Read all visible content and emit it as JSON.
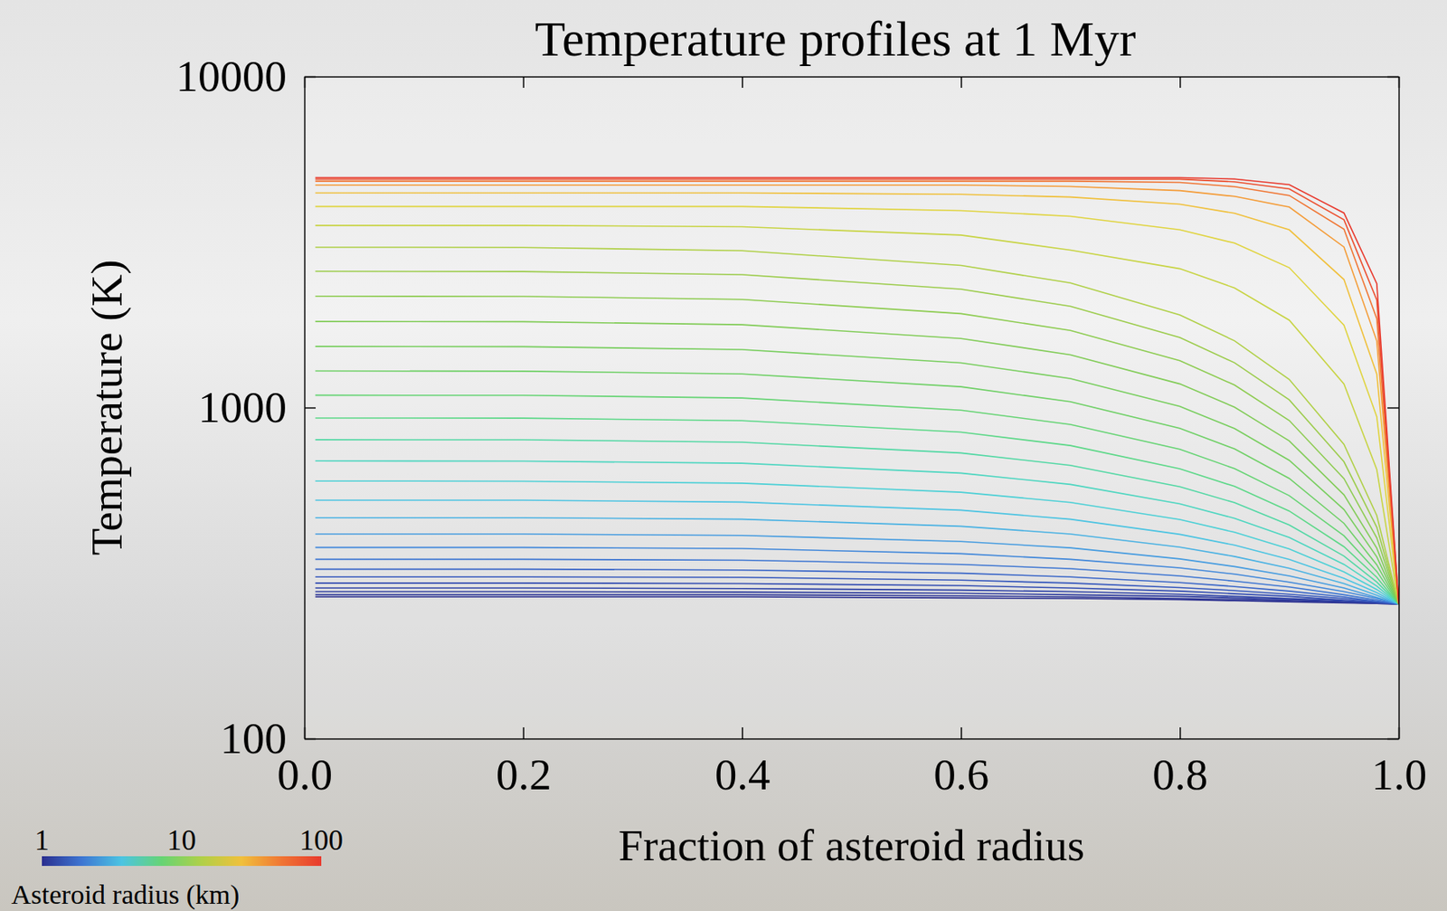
{
  "chart_data": {
    "type": "line",
    "title": "Temperature profiles at 1 Myr",
    "x_label": "Fraction of asteroid radius",
    "y_label": "Temperature (K)",
    "log": "y",
    "xlim": [
      0,
      1
    ],
    "ylim": [
      100,
      10000
    ],
    "xticks": [
      {
        "value": 0,
        "label": "0.0"
      },
      {
        "value": 0.2,
        "label": "0.2"
      },
      {
        "value": 0.4,
        "label": "0.4"
      },
      {
        "value": 0.6,
        "label": "0.6"
      },
      {
        "value": 0.8,
        "label": "0.8"
      },
      {
        "value": 1,
        "label": "1.0"
      }
    ],
    "yticks": [
      100,
      1000,
      10000
    ],
    "x": [
      0.01,
      0.2,
      0.4,
      0.6,
      0.7,
      0.8,
      0.85,
      0.9,
      0.95,
      0.98,
      1.0
    ],
    "series": [
      {
        "color": "#2b2f8f",
        "values": [
          268,
          268,
          268,
          266,
          265,
          263,
          261,
          259,
          257,
          256,
          255
        ]
      },
      {
        "color": "#2c3596",
        "values": [
          272,
          272,
          272,
          270,
          268,
          265,
          263,
          261,
          258,
          256,
          255
        ]
      },
      {
        "color": "#2e3c9e",
        "values": [
          278,
          278,
          277,
          275,
          272,
          269,
          266,
          263,
          259,
          257,
          255
        ]
      },
      {
        "color": "#3044a8",
        "values": [
          285,
          285,
          284,
          281,
          278,
          273,
          269,
          265,
          261,
          257,
          255
        ]
      },
      {
        "color": "#334db2",
        "values": [
          295,
          295,
          294,
          290,
          285,
          279,
          274,
          269,
          262,
          258,
          255
        ]
      },
      {
        "color": "#3658bd",
        "values": [
          308,
          308,
          307,
          301,
          295,
          286,
          280,
          273,
          265,
          259,
          255
        ]
      },
      {
        "color": "#3a66c8",
        "values": [
          325,
          325,
          323,
          316,
          308,
          296,
          288,
          279,
          268,
          260,
          255
        ]
      },
      {
        "color": "#3e76d2",
        "values": [
          348,
          348,
          346,
          336,
          326,
          310,
          299,
          287,
          272,
          262,
          255
        ]
      },
      {
        "color": "#4288da",
        "values": [
          378,
          378,
          375,
          362,
          348,
          328,
          314,
          297,
          278,
          265,
          255
        ]
      },
      {
        "color": "#469ce0",
        "values": [
          415,
          415,
          411,
          394,
          377,
          349,
          331,
          310,
          285,
          267,
          255
        ]
      },
      {
        "color": "#4ab2e3",
        "values": [
          465,
          465,
          460,
          438,
          415,
          379,
          355,
          327,
          294,
          271,
          255
        ]
      },
      {
        "color": "#4cc4e2",
        "values": [
          525,
          525,
          518,
          490,
          460,
          414,
          384,
          348,
          305,
          276,
          255
        ]
      },
      {
        "color": "#4cd0d6",
        "values": [
          600,
          599,
          591,
          555,
          517,
          459,
          420,
          374,
          319,
          282,
          255
        ]
      },
      {
        "color": "#4dd6c0",
        "values": [
          690,
          689,
          679,
          634,
          586,
          512,
          463,
          405,
          336,
          289,
          255
        ]
      },
      {
        "color": "#52d8a4",
        "values": [
          800,
          799,
          786,
          729,
          669,
          577,
          516,
          442,
          356,
          297,
          255
        ]
      },
      {
        "color": "#5cd888",
        "values": [
          930,
          929,
          913,
          843,
          768,
          653,
          578,
          487,
          380,
          307,
          255
        ]
      },
      {
        "color": "#66d474",
        "values": [
          1090,
          1089,
          1069,
          982,
          889,
          748,
          654,
          542,
          410,
          320,
          255
        ]
      },
      {
        "color": "#6fd066",
        "values": [
          1290,
          1288,
          1264,
          1156,
          1041,
          866,
          750,
          611,
          447,
          335,
          255
        ]
      },
      {
        "color": "#78ce5e",
        "values": [
          1530,
          1528,
          1497,
          1365,
          1224,
          1008,
          864,
          693,
          492,
          354,
          255
        ]
      },
      {
        "color": "#82cc58",
        "values": [
          1820,
          1817,
          1780,
          1617,
          1444,
          1179,
          1003,
          793,
          545,
          376,
          255
        ]
      },
      {
        "color": "#8ecc52",
        "values": [
          2170,
          2167,
          2121,
          1922,
          1710,
          1386,
          1170,
          914,
          610,
          404,
          255
        ]
      },
      {
        "color": "#9ccc4c",
        "values": [
          2580,
          2576,
          2521,
          2279,
          2022,
          1628,
          1366,
          1055,
          686,
          435,
          255
        ]
      },
      {
        "color": "#b0d048",
        "values": [
          3050,
          3046,
          2978,
          2688,
          2379,
          1905,
          1591,
          1216,
          774,
          472,
          255
        ]
      },
      {
        "color": "#c8d444",
        "values": [
          3550,
          3550,
          3517,
          3319,
          2989,
          2627,
          2298,
          1837,
          1178,
          650,
          255
        ]
      },
      {
        "color": "#e0d440",
        "values": [
          4050,
          4050,
          4050,
          3936,
          3784,
          3443,
          3139,
          2646,
          1773,
          938,
          255
        ]
      },
      {
        "color": "#f0c03c",
        "values": [
          4450,
          4450,
          4450,
          4408,
          4324,
          4114,
          3863,
          3443,
          2436,
          1262,
          255
        ]
      },
      {
        "color": "#f49c38",
        "values": [
          4700,
          4700,
          4700,
          4700,
          4656,
          4522,
          4344,
          4033,
          3055,
          1589,
          255
        ]
      },
      {
        "color": "#f07634",
        "values": [
          4830,
          4830,
          4830,
          4830,
          4830,
          4785,
          4647,
          4373,
          3458,
          1856,
          255
        ]
      },
      {
        "color": "#ec5030",
        "values": [
          4900,
          4900,
          4900,
          4900,
          4900,
          4900,
          4807,
          4575,
          3692,
          2113,
          255
        ]
      },
      {
        "color": "#e83a2e",
        "values": [
          4950,
          4950,
          4950,
          4950,
          4950,
          4950,
          4903,
          4715,
          3870,
          2368,
          255
        ]
      }
    ],
    "colorbar": {
      "label": "Asteroid radius (km)",
      "range": [
        1,
        100
      ],
      "ticks": [
        1,
        10,
        100
      ],
      "colors": [
        "#2b2f8f",
        "#3e76d2",
        "#4cc4e2",
        "#66d474",
        "#b0d048",
        "#f0c03c",
        "#f07634",
        "#e83a2e"
      ]
    }
  }
}
